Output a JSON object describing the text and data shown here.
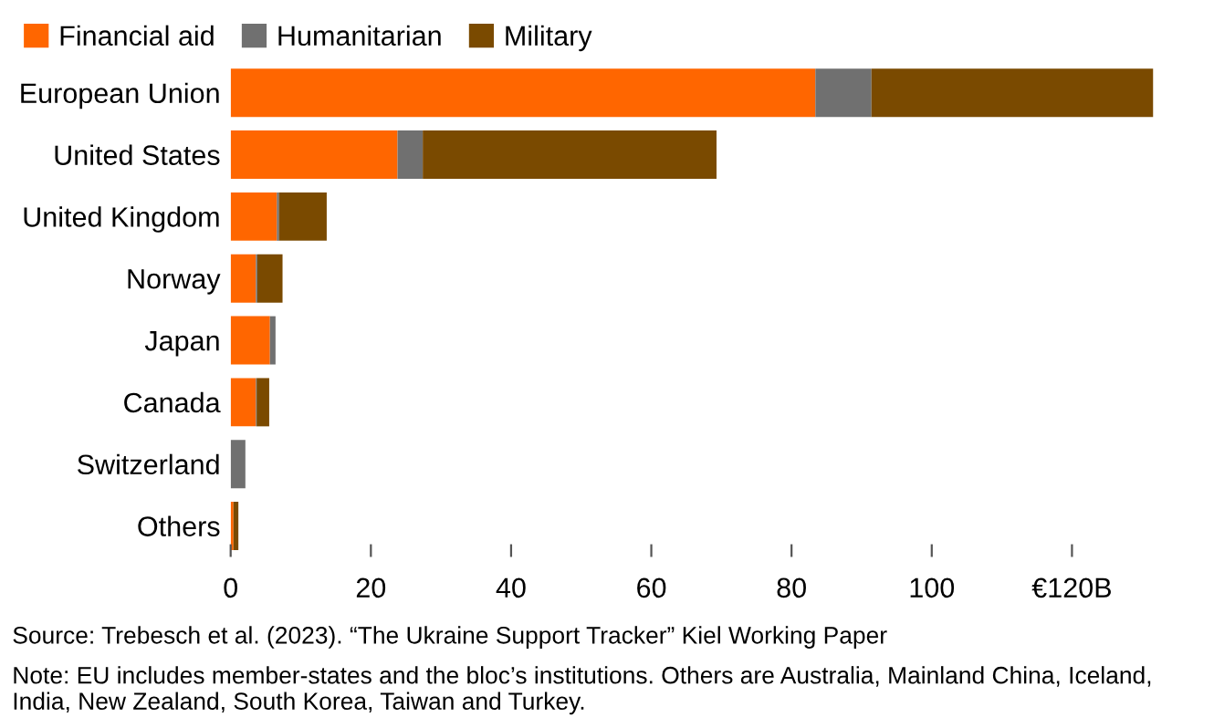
{
  "chart_data": {
    "type": "bar",
    "orientation": "horizontal",
    "stacked": true,
    "categories": [
      "European Union",
      "United States",
      "United Kingdom",
      "Norway",
      "Japan",
      "Canada",
      "Switzerland",
      "Others"
    ],
    "series": [
      {
        "name": "Financial aid",
        "color": "#ff6600",
        "values": [
          83.4,
          23.8,
          6.6,
          3.6,
          5.6,
          3.6,
          0,
          0.4
        ]
      },
      {
        "name": "Humanitarian",
        "color": "#707070",
        "values": [
          8.0,
          3.6,
          0.3,
          0.2,
          0.8,
          0.1,
          2.1,
          0
        ]
      },
      {
        "name": "Military",
        "color": "#7a4a00",
        "values": [
          40.2,
          41.9,
          6.8,
          3.6,
          0,
          1.8,
          0,
          0.7
        ]
      }
    ],
    "xlim": [
      0,
      131.6
    ],
    "xticks": [
      0,
      20,
      40,
      60,
      80,
      100,
      {
        "value": 120,
        "label": "€120B"
      }
    ],
    "grid": false,
    "legend": "top left",
    "annotations": [
      "Source: Trebesch et al. (2023). “The Ukraine Support Tracker” Kiel Working Paper",
      "Note: EU includes member-states and the bloc’s institutions. Others are Australia, Mainland China, Iceland, India, New Zealand, South Korea, Taiwan and Turkey."
    ]
  }
}
